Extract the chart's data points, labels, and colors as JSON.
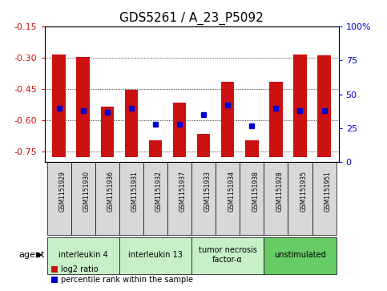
{
  "title": "GDS5261 / A_23_P5092",
  "samples": [
    "GSM1151929",
    "GSM1151930",
    "GSM1151936",
    "GSM1151931",
    "GSM1151932",
    "GSM1151937",
    "GSM1151933",
    "GSM1151934",
    "GSM1151938",
    "GSM1151928",
    "GSM1151935",
    "GSM1151951"
  ],
  "log2_ratio": [
    -0.285,
    -0.295,
    -0.535,
    -0.455,
    -0.695,
    -0.515,
    -0.665,
    -0.415,
    -0.695,
    -0.415,
    -0.285,
    -0.29
  ],
  "percentile": [
    40,
    38,
    37,
    40,
    28,
    28,
    35,
    42,
    27,
    40,
    38,
    38
  ],
  "groups": [
    {
      "label": "interleukin 4",
      "indices": [
        0,
        1,
        2
      ],
      "color": "#c8f0c8"
    },
    {
      "label": "interleukin 13",
      "indices": [
        3,
        4,
        5
      ],
      "color": "#c8f0c8"
    },
    {
      "label": "tumor necrosis\nfactor-α",
      "indices": [
        6,
        7,
        8
      ],
      "color": "#c8f0c8"
    },
    {
      "label": "unstimulated",
      "indices": [
        9,
        10,
        11
      ],
      "color": "#66cc66"
    }
  ],
  "ymin": -0.8,
  "ymax": -0.15,
  "bar_bottom": -0.775,
  "yticks": [
    -0.75,
    -0.6,
    -0.45,
    -0.3,
    -0.15
  ],
  "ytick_labels": [
    "-0.75",
    "-0.60",
    "-0.45",
    "-0.30",
    "-0.15"
  ],
  "right_yticks": [
    0,
    25,
    50,
    75,
    100
  ],
  "right_ytick_labels": [
    "0",
    "25",
    "50",
    "75",
    "100%"
  ],
  "bar_color": "#cc1111",
  "dot_color": "#0000cc",
  "sample_box_color": "#d8d8d8",
  "bg_color": "#ffffff",
  "title_fontsize": 11,
  "tick_fontsize": 8,
  "agent_label": "agent",
  "legend_log2": "log2 ratio",
  "legend_pct": "percentile rank within the sample"
}
